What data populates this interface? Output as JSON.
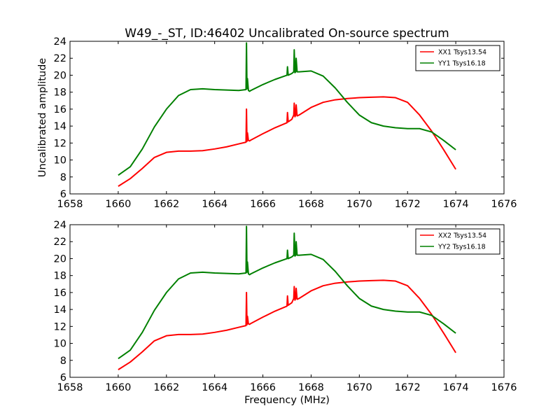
{
  "figure": {
    "title": "W49_-_ST, ID:46402 Uncalibrated On-source spectrum",
    "ylabel": "Uncalibrated amplitude",
    "xlabel": "Frequency (MHz)"
  },
  "chart_data": [
    {
      "type": "line",
      "xlim": [
        1658,
        1676
      ],
      "ylim": [
        6,
        24
      ],
      "xticks": [
        1658,
        1660,
        1662,
        1664,
        1666,
        1668,
        1670,
        1672,
        1674,
        1676
      ],
      "yticks": [
        6,
        8,
        10,
        12,
        14,
        16,
        18,
        20,
        22,
        24
      ],
      "grid": false,
      "legend_position": "top-right",
      "ylabel": "Uncalibrated amplitude",
      "xlabel": "",
      "series": [
        {
          "name": "XX1 Tsys13.54",
          "color": "#ff0000",
          "x": [
            1660.0,
            1660.5,
            1661.0,
            1661.5,
            1662.0,
            1662.5,
            1663.0,
            1663.5,
            1664.0,
            1664.5,
            1665.0,
            1665.3,
            1665.32,
            1665.34,
            1665.36,
            1665.4,
            1665.45,
            1665.5,
            1666.0,
            1666.5,
            1667.0,
            1667.02,
            1667.05,
            1667.2,
            1667.28,
            1667.3,
            1667.33,
            1667.36,
            1667.38,
            1667.42,
            1667.5,
            1668.0,
            1668.5,
            1669.0,
            1669.5,
            1670.0,
            1670.5,
            1671.0,
            1671.5,
            1672.0,
            1672.5,
            1673.0,
            1673.5,
            1674.0
          ],
          "y": [
            6.9,
            7.8,
            9.0,
            10.3,
            10.9,
            11.05,
            11.05,
            11.1,
            11.3,
            11.55,
            11.9,
            12.1,
            16.0,
            12.2,
            13.2,
            12.3,
            12.25,
            12.35,
            13.1,
            13.8,
            14.4,
            15.6,
            14.5,
            14.8,
            15.3,
            16.7,
            15.1,
            15.3,
            16.5,
            15.2,
            15.3,
            16.2,
            16.8,
            17.1,
            17.25,
            17.35,
            17.4,
            17.45,
            17.35,
            16.8,
            15.3,
            13.4,
            11.2,
            8.9
          ]
        },
        {
          "name": "YY1 Tsys16.18",
          "color": "#008000",
          "x": [
            1660.0,
            1660.5,
            1661.0,
            1661.5,
            1662.0,
            1662.5,
            1663.0,
            1663.5,
            1664.0,
            1664.5,
            1665.0,
            1665.3,
            1665.32,
            1665.34,
            1665.36,
            1665.4,
            1665.45,
            1665.5,
            1666.0,
            1666.5,
            1667.0,
            1667.02,
            1667.05,
            1667.2,
            1667.28,
            1667.3,
            1667.33,
            1667.36,
            1667.38,
            1667.42,
            1667.5,
            1668.0,
            1668.5,
            1669.0,
            1669.5,
            1670.0,
            1670.5,
            1671.0,
            1671.5,
            1672.0,
            1672.5,
            1673.0,
            1673.5,
            1674.0
          ],
          "y": [
            8.2,
            9.2,
            11.3,
            13.9,
            16.0,
            17.6,
            18.3,
            18.4,
            18.3,
            18.25,
            18.2,
            18.3,
            23.8,
            18.4,
            19.6,
            18.2,
            18.1,
            18.2,
            18.9,
            19.5,
            20.0,
            21.0,
            20.0,
            20.2,
            20.4,
            23.0,
            20.3,
            20.4,
            22.0,
            20.4,
            20.4,
            20.5,
            19.9,
            18.5,
            16.8,
            15.3,
            14.4,
            14.0,
            13.8,
            13.7,
            13.7,
            13.3,
            12.3,
            11.2
          ]
        }
      ]
    },
    {
      "type": "line",
      "xlim": [
        1658,
        1676
      ],
      "ylim": [
        6,
        24
      ],
      "xticks": [
        1658,
        1660,
        1662,
        1664,
        1666,
        1668,
        1670,
        1672,
        1674,
        1676
      ],
      "yticks": [
        6,
        8,
        10,
        12,
        14,
        16,
        18,
        20,
        22,
        24
      ],
      "grid": false,
      "legend_position": "top-right",
      "ylabel": "",
      "xlabel": "Frequency (MHz)",
      "series": [
        {
          "name": "XX2 Tsys13.54",
          "color": "#ff0000",
          "x": [
            1660.0,
            1660.5,
            1661.0,
            1661.5,
            1662.0,
            1662.5,
            1663.0,
            1663.5,
            1664.0,
            1664.5,
            1665.0,
            1665.3,
            1665.32,
            1665.34,
            1665.36,
            1665.4,
            1665.45,
            1665.5,
            1666.0,
            1666.5,
            1667.0,
            1667.02,
            1667.05,
            1667.2,
            1667.28,
            1667.3,
            1667.33,
            1667.36,
            1667.38,
            1667.42,
            1667.5,
            1668.0,
            1668.5,
            1669.0,
            1669.5,
            1670.0,
            1670.5,
            1671.0,
            1671.5,
            1672.0,
            1672.5,
            1673.0,
            1673.5,
            1674.0
          ],
          "y": [
            6.9,
            7.8,
            9.0,
            10.3,
            10.9,
            11.05,
            11.05,
            11.1,
            11.3,
            11.55,
            11.9,
            12.1,
            16.0,
            12.2,
            13.2,
            12.3,
            12.25,
            12.35,
            13.1,
            13.8,
            14.4,
            15.6,
            14.5,
            14.8,
            15.3,
            16.7,
            15.1,
            15.3,
            16.5,
            15.2,
            15.3,
            16.2,
            16.8,
            17.1,
            17.25,
            17.35,
            17.4,
            17.45,
            17.35,
            16.8,
            15.3,
            13.4,
            11.2,
            8.9
          ]
        },
        {
          "name": "YY2 Tsys16.18",
          "color": "#008000",
          "x": [
            1660.0,
            1660.5,
            1661.0,
            1661.5,
            1662.0,
            1662.5,
            1663.0,
            1663.5,
            1664.0,
            1664.5,
            1665.0,
            1665.3,
            1665.32,
            1665.34,
            1665.36,
            1665.4,
            1665.45,
            1665.5,
            1666.0,
            1666.5,
            1667.0,
            1667.02,
            1667.05,
            1667.2,
            1667.28,
            1667.3,
            1667.33,
            1667.36,
            1667.38,
            1667.42,
            1667.5,
            1668.0,
            1668.5,
            1669.0,
            1669.5,
            1670.0,
            1670.5,
            1671.0,
            1671.5,
            1672.0,
            1672.5,
            1673.0,
            1673.5,
            1674.0
          ],
          "y": [
            8.2,
            9.2,
            11.3,
            13.9,
            16.0,
            17.6,
            18.3,
            18.4,
            18.3,
            18.25,
            18.2,
            18.3,
            23.8,
            18.4,
            19.6,
            18.2,
            18.1,
            18.2,
            18.9,
            19.5,
            20.0,
            21.0,
            20.0,
            20.2,
            20.4,
            23.0,
            20.3,
            20.4,
            22.0,
            20.4,
            20.4,
            20.5,
            19.9,
            18.5,
            16.8,
            15.3,
            14.4,
            14.0,
            13.8,
            13.7,
            13.7,
            13.3,
            12.3,
            11.2
          ]
        }
      ]
    }
  ]
}
